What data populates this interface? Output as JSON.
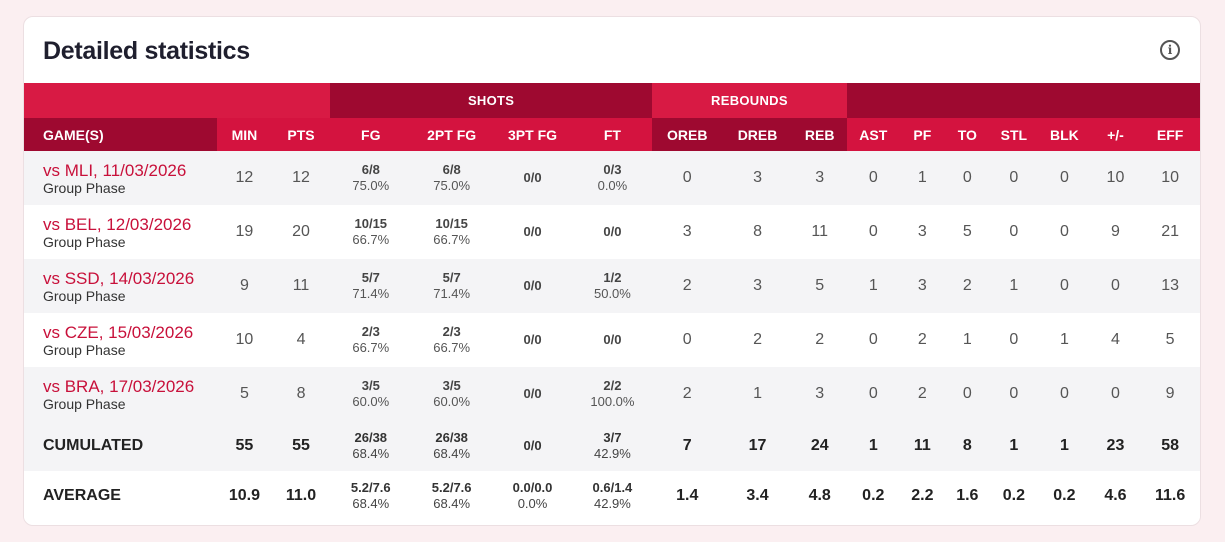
{
  "title": "Detailed statistics",
  "info_icon": "info-icon",
  "groups": {
    "shots": "SHOTS",
    "rebounds": "REBOUNDS"
  },
  "columns": [
    "GAME(S)",
    "MIN",
    "PTS",
    "FG",
    "2PT FG",
    "3PT FG",
    "FT",
    "OREB",
    "DREB",
    "REB",
    "AST",
    "PF",
    "TO",
    "STL",
    "BLK",
    "+/-",
    "EFF"
  ],
  "colors": {
    "header_red": "#d4133f",
    "header_dark": "#9e0930",
    "game_link": "#c8103a"
  },
  "games": [
    {
      "name": "vs MLI, 11/03/2026",
      "phase": "Group Phase",
      "min": "12",
      "pts": "12",
      "fg_m": "6/8",
      "fg_p": "75.0%",
      "fg2_m": "6/8",
      "fg2_p": "75.0%",
      "fg3": "0/0",
      "ft_m": "0/3",
      "ft_p": "0.0%",
      "oreb": "0",
      "dreb": "3",
      "reb": "3",
      "ast": "0",
      "pf": "1",
      "to": "0",
      "stl": "0",
      "blk": "0",
      "pm": "10",
      "eff": "10"
    },
    {
      "name": "vs BEL, 12/03/2026",
      "phase": "Group Phase",
      "min": "19",
      "pts": "20",
      "fg_m": "10/15",
      "fg_p": "66.7%",
      "fg2_m": "10/15",
      "fg2_p": "66.7%",
      "fg3": "0/0",
      "ft_m": "0/0",
      "ft_p": "",
      "oreb": "3",
      "dreb": "8",
      "reb": "11",
      "ast": "0",
      "pf": "3",
      "to": "5",
      "stl": "0",
      "blk": "0",
      "pm": "9",
      "eff": "21"
    },
    {
      "name": "vs SSD, 14/03/2026",
      "phase": "Group Phase",
      "min": "9",
      "pts": "11",
      "fg_m": "5/7",
      "fg_p": "71.4%",
      "fg2_m": "5/7",
      "fg2_p": "71.4%",
      "fg3": "0/0",
      "ft_m": "1/2",
      "ft_p": "50.0%",
      "oreb": "2",
      "dreb": "3",
      "reb": "5",
      "ast": "1",
      "pf": "3",
      "to": "2",
      "stl": "1",
      "blk": "0",
      "pm": "0",
      "eff": "13"
    },
    {
      "name": "vs CZE, 15/03/2026",
      "phase": "Group Phase",
      "min": "10",
      "pts": "4",
      "fg_m": "2/3",
      "fg_p": "66.7%",
      "fg2_m": "2/3",
      "fg2_p": "66.7%",
      "fg3": "0/0",
      "ft_m": "0/0",
      "ft_p": "",
      "oreb": "0",
      "dreb": "2",
      "reb": "2",
      "ast": "0",
      "pf": "2",
      "to": "1",
      "stl": "0",
      "blk": "1",
      "pm": "4",
      "eff": "5"
    },
    {
      "name": "vs BRA, 17/03/2026",
      "phase": "Group Phase",
      "min": "5",
      "pts": "8",
      "fg_m": "3/5",
      "fg_p": "60.0%",
      "fg2_m": "3/5",
      "fg2_p": "60.0%",
      "fg3": "0/0",
      "ft_m": "2/2",
      "ft_p": "100.0%",
      "oreb": "2",
      "dreb": "1",
      "reb": "3",
      "ast": "0",
      "pf": "2",
      "to": "0",
      "stl": "0",
      "blk": "0",
      "pm": "0",
      "eff": "9"
    }
  ],
  "cumulated": {
    "label": "CUMULATED",
    "min": "55",
    "pts": "55",
    "fg_m": "26/38",
    "fg_p": "68.4%",
    "fg2_m": "26/38",
    "fg2_p": "68.4%",
    "fg3_m": "0/0",
    "fg3_p": "",
    "ft_m": "3/7",
    "ft_p": "42.9%",
    "oreb": "7",
    "dreb": "17",
    "reb": "24",
    "ast": "1",
    "pf": "11",
    "to": "8",
    "stl": "1",
    "blk": "1",
    "pm": "23",
    "eff": "58"
  },
  "average": {
    "label": "AVERAGE",
    "min": "10.9",
    "pts": "11.0",
    "fg_m": "5.2/7.6",
    "fg_p": "68.4%",
    "fg2_m": "5.2/7.6",
    "fg2_p": "68.4%",
    "fg3_m": "0.0/0.0",
    "fg3_p": "0.0%",
    "ft_m": "0.6/1.4",
    "ft_p": "42.9%",
    "oreb": "1.4",
    "dreb": "3.4",
    "reb": "4.8",
    "ast": "0.2",
    "pf": "2.2",
    "to": "1.6",
    "stl": "0.2",
    "blk": "0.2",
    "pm": "4.6",
    "eff": "11.6"
  }
}
